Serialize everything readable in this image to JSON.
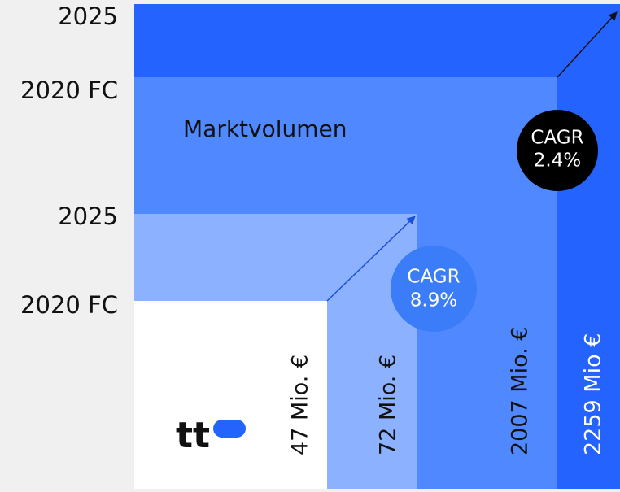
{
  "year_labels": [
    "2025",
    "2020 FC",
    "2025",
    "2020 FC"
  ],
  "title": "Marktvolumen",
  "cagr": [
    {
      "label": "CAGR",
      "value": "2.4%"
    },
    {
      "label": "CAGR",
      "value": "8.9%"
    }
  ],
  "volumes": [
    "47 Mio. €",
    "72 Mio. €",
    "2007 Mio. €",
    "2259 Mio €"
  ],
  "logo": "tt"
}
